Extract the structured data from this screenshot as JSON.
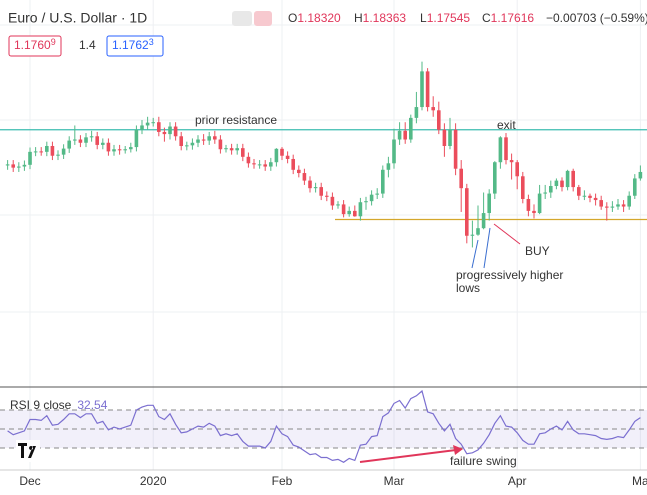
{
  "chart_data": {
    "type": "candlestick",
    "title": "Euro / U.S. Dollar · 1D",
    "header": {
      "open_prefix": "O",
      "open": "1.18320",
      "high_prefix": "H",
      "high": "1.18363",
      "low_prefix": "L",
      "low": "1.17545",
      "close_prefix": "C",
      "close": "1.17616",
      "change": "−0.00703 (−0.59%)"
    },
    "quote": {
      "sell": "1.1760",
      "sell_pip": "9",
      "spread": "1.4",
      "buy": "1.1762",
      "buy_pip": "3"
    },
    "up_color": "#53b987",
    "down_color": "#eb4d5c",
    "xlim": [
      -1.36,
      114.18
    ],
    "xticks": [
      {
        "value": 4,
        "label": "Dec"
      },
      {
        "value": 26,
        "label": "2020"
      },
      {
        "value": 49,
        "label": "Feb"
      },
      {
        "value": 69,
        "label": "Mar"
      },
      {
        "value": 91,
        "label": "Apr"
      },
      {
        "value": 113,
        "label": "Ma"
      }
    ],
    "ylim": [
      1.0,
      1.178
    ],
    "ohlc": {
      "open": [
        1.1015,
        1.102,
        1.1005,
        1.101,
        1.1018,
        1.1078,
        1.108,
        1.1078,
        1.1105,
        1.106,
        1.1065,
        1.1093,
        1.113,
        1.1135,
        1.112,
        1.1145,
        1.115,
        1.111,
        1.112,
        1.108,
        1.109,
        1.1085,
        1.109,
        1.11,
        1.118,
        1.12,
        1.1213,
        1.1215,
        1.117,
        1.116,
        1.1195,
        1.115,
        1.1105,
        1.1108,
        1.112,
        1.1135,
        1.113,
        1.115,
        1.1135,
        1.109,
        1.1095,
        1.1085,
        1.1095,
        1.1055,
        1.1025,
        1.102,
        1.102,
        1.101,
        1.103,
        1.1092,
        1.106,
        1.1045,
        1.0995,
        1.098,
        1.0945,
        1.091,
        1.0915,
        1.0875,
        1.087,
        1.083,
        1.0835,
        1.079,
        1.0805,
        1.078,
        1.0845,
        1.085,
        1.088,
        1.0885,
        1.0995,
        1.1025,
        1.1135,
        1.1175,
        1.1135,
        1.1235,
        1.1285,
        1.145,
        1.1285,
        1.127,
        1.118,
        1.1105,
        1.118,
        1.1,
        1.091,
        1.069,
        1.0695,
        1.0725,
        1.0795,
        1.0885,
        1.103,
        1.1145,
        1.104,
        1.103,
        1.0965,
        1.086,
        1.0805,
        1.0795,
        1.0885,
        1.089,
        1.092,
        1.0945,
        1.0915,
        1.099,
        1.0915,
        1.0875,
        1.0875,
        1.0865,
        1.0855,
        1.0825,
        1.082,
        1.0825,
        1.0835,
        1.0825,
        1.0875,
        1.0955
      ],
      "high": [
        1.104,
        1.104,
        1.103,
        1.1038,
        1.1098,
        1.11,
        1.11,
        1.1125,
        1.1125,
        1.1085,
        1.1113,
        1.115,
        1.12,
        1.1155,
        1.1165,
        1.1175,
        1.117,
        1.114,
        1.114,
        1.111,
        1.111,
        1.1105,
        1.112,
        1.12,
        1.1225,
        1.124,
        1.1235,
        1.124,
        1.119,
        1.1215,
        1.1215,
        1.117,
        1.1125,
        1.114,
        1.1155,
        1.116,
        1.117,
        1.1175,
        1.1155,
        1.111,
        1.1115,
        1.1115,
        1.1115,
        1.1075,
        1.1045,
        1.104,
        1.104,
        1.105,
        1.1095,
        1.11,
        1.108,
        1.1065,
        1.1015,
        1.1,
        1.0965,
        1.0935,
        1.0935,
        1.0895,
        1.089,
        1.085,
        1.0855,
        1.0825,
        1.083,
        1.0865,
        1.087,
        1.09,
        1.091,
        1.1015,
        1.1055,
        1.1185,
        1.1215,
        1.1215,
        1.125,
        1.1355,
        1.1495,
        1.1465,
        1.1335,
        1.131,
        1.121,
        1.1235,
        1.121,
        1.104,
        1.093,
        1.076,
        1.083,
        1.089,
        1.0905,
        1.1035,
        1.115,
        1.1165,
        1.107,
        1.104,
        1.0985,
        1.088,
        1.0835,
        1.0925,
        1.0925,
        1.0945,
        1.0955,
        1.096,
        1.0995,
        1.1,
        1.0925,
        1.09,
        1.0885,
        1.0885,
        1.0875,
        1.0845,
        1.085,
        1.086,
        1.0855,
        1.0895,
        1.0975,
        1.1015
      ],
      "low": [
        1.0995,
        1.0985,
        1.0985,
        1.099,
        1.0998,
        1.1058,
        1.106,
        1.1058,
        1.104,
        1.104,
        1.1045,
        1.1073,
        1.111,
        1.11,
        1.11,
        1.1125,
        1.109,
        1.109,
        1.106,
        1.106,
        1.1065,
        1.107,
        1.1075,
        1.108,
        1.116,
        1.118,
        1.1195,
        1.115,
        1.1125,
        1.1135,
        1.113,
        1.1085,
        1.1085,
        1.1088,
        1.11,
        1.111,
        1.111,
        1.1115,
        1.107,
        1.1075,
        1.1065,
        1.1065,
        1.1035,
        1.1005,
        1.1,
        1.1,
        1.099,
        1.099,
        1.101,
        1.104,
        1.1025,
        1.0975,
        1.096,
        1.0925,
        1.089,
        1.089,
        1.0855,
        1.085,
        1.081,
        1.0815,
        1.0775,
        1.0778,
        1.0778,
        1.076,
        1.081,
        1.083,
        1.086,
        1.0865,
        1.096,
        1.1,
        1.111,
        1.1115,
        1.112,
        1.121,
        1.127,
        1.1265,
        1.124,
        1.116,
        1.1055,
        1.109,
        1.097,
        1.08,
        1.0655,
        1.0636,
        1.069,
        1.072,
        1.076,
        1.086,
        1.1,
        1.102,
        1.095,
        1.0905,
        1.084,
        1.078,
        1.077,
        1.079,
        1.086,
        1.0865,
        1.0905,
        1.0895,
        1.09,
        1.0895,
        1.0855,
        1.0855,
        1.0845,
        1.083,
        1.081,
        1.076,
        1.08,
        1.081,
        1.08,
        1.081,
        1.086,
        1.0945
      ],
      "close": [
        1.102,
        1.1005,
        1.101,
        1.1018,
        1.1078,
        1.108,
        1.1078,
        1.1105,
        1.106,
        1.1065,
        1.1093,
        1.113,
        1.1135,
        1.112,
        1.1145,
        1.115,
        1.111,
        1.112,
        1.108,
        1.109,
        1.1085,
        1.109,
        1.11,
        1.118,
        1.12,
        1.1213,
        1.1215,
        1.117,
        1.116,
        1.1195,
        1.115,
        1.1105,
        1.1108,
        1.112,
        1.1135,
        1.113,
        1.115,
        1.1135,
        1.109,
        1.1095,
        1.1085,
        1.1095,
        1.1055,
        1.1025,
        1.102,
        1.102,
        1.101,
        1.103,
        1.1092,
        1.106,
        1.1045,
        1.0995,
        1.098,
        1.0945,
        1.091,
        1.0915,
        1.0875,
        1.087,
        1.083,
        1.0835,
        1.079,
        1.0805,
        1.078,
        1.0845,
        1.085,
        1.088,
        1.0885,
        1.0995,
        1.1025,
        1.1135,
        1.1175,
        1.1135,
        1.1235,
        1.1285,
        1.145,
        1.1285,
        1.127,
        1.118,
        1.1105,
        1.118,
        1.1,
        1.091,
        1.069,
        1.0695,
        1.0725,
        1.0795,
        1.0885,
        1.103,
        1.1145,
        1.104,
        1.103,
        1.0965,
        1.086,
        1.0805,
        1.0795,
        1.0885,
        1.089,
        1.092,
        1.0945,
        1.0915,
        1.099,
        1.0915,
        1.0875,
        1.0875,
        1.0865,
        1.0855,
        1.0825,
        1.082,
        1.0825,
        1.0835,
        1.0825,
        1.0875,
        1.0955,
        1.0985
      ]
    },
    "levels": [
      {
        "label": "prior resistance",
        "value": 1.118,
        "color": "#3dbdb0"
      },
      {
        "value": 1.0765,
        "color": "#d4a72c"
      }
    ],
    "annotations": {
      "exit": "exit",
      "buy": "BUY",
      "higher_lows": [
        "progressively higher",
        "lows"
      ],
      "failure_swing": "failure swing"
    },
    "rsi": {
      "name": "RSI 9 close",
      "last": "32.54",
      "color": "#7b6fd0",
      "ylim": [
        0,
        100
      ],
      "levels": [
        70,
        50,
        30
      ],
      "values": [
        48,
        44,
        46,
        48,
        60,
        60,
        59,
        64,
        54,
        55,
        60,
        66,
        66,
        62,
        66,
        66,
        56,
        58,
        49,
        52,
        50,
        52,
        54,
        70,
        73,
        75,
        75,
        63,
        60,
        66,
        55,
        46,
        47,
        50,
        53,
        52,
        56,
        53,
        43,
        45,
        43,
        45,
        37,
        32,
        32,
        32,
        30,
        37,
        53,
        45,
        42,
        33,
        31,
        27,
        23,
        24,
        20,
        20,
        17,
        18,
        15,
        19,
        17,
        33,
        34,
        42,
        43,
        63,
        67,
        77,
        80,
        72,
        82,
        85,
        90,
        68,
        66,
        56,
        48,
        55,
        40,
        34,
        24,
        25,
        28,
        35,
        44,
        56,
        64,
        53,
        52,
        46,
        38,
        34,
        34,
        45,
        46,
        50,
        53,
        49,
        58,
        49,
        45,
        45,
        44,
        43,
        40,
        39,
        40,
        42,
        41,
        49,
        58,
        62
      ]
    }
  }
}
